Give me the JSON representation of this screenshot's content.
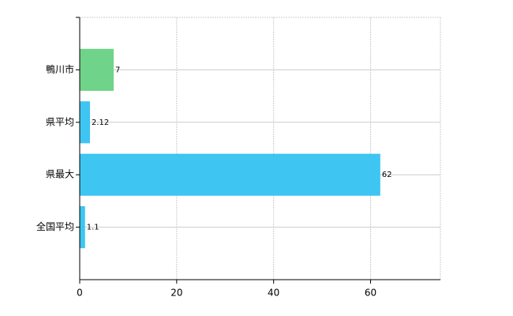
{
  "chart_data": {
    "type": "bar",
    "orientation": "horizontal",
    "categories": [
      "鴨川市",
      "県平均",
      "県最大",
      "全国平均"
    ],
    "values": [
      7,
      2.12,
      62,
      1.1
    ],
    "colors": [
      "#6fd38a",
      "#3ec5f2",
      "#3ec5f2",
      "#3ec5f2"
    ],
    "xlim": [
      0,
      74.4
    ],
    "xticks": [
      0,
      20,
      40,
      60
    ],
    "grid": true
  }
}
